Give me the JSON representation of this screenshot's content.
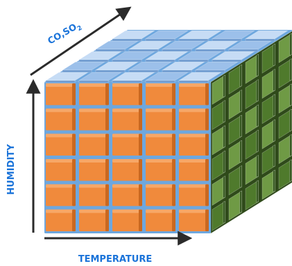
{
  "axes": {
    "x_label": "TEMPERATURE",
    "y_label": "HUMIDITY",
    "z_label_main": "CO,SO",
    "z_label_sub": "2"
  },
  "grid": {
    "cols": 5,
    "rows": 6,
    "depth": 5
  },
  "colors": {
    "label": "#1a73d9",
    "arrow": "#2b2b2b",
    "front": "#f08a3c",
    "front_light": "#f7a767",
    "front_dark": "#c96820",
    "top": "#9cc0ea",
    "top_light": "#c6dcf5",
    "top_dark": "#6f9bd0",
    "side": "#4f7a2c",
    "side_light": "#6f9a45",
    "side_dark": "#365820",
    "gap": "#6ea7de"
  }
}
